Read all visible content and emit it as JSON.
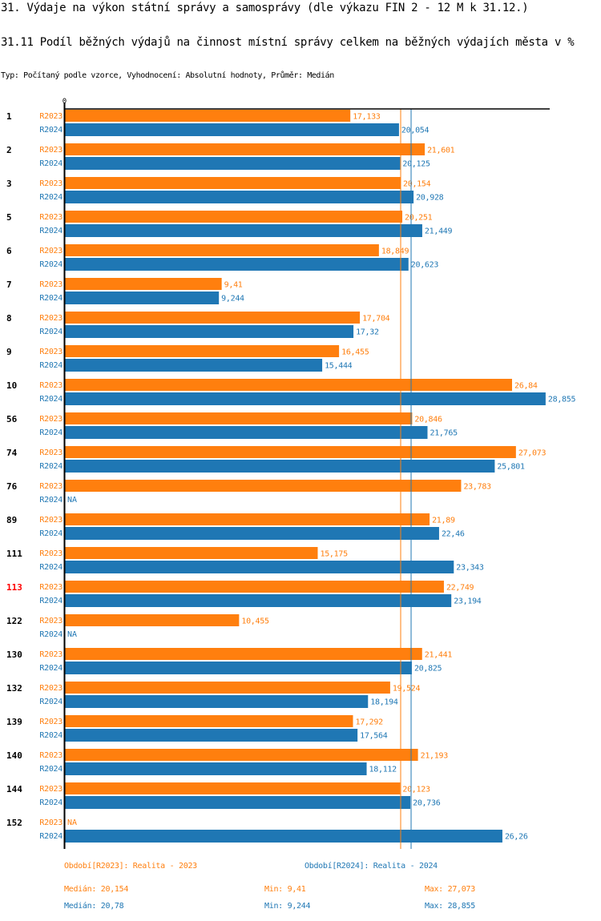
{
  "header": {
    "title": "31. Výdaje na výkon státní správy a samosprávy (dle výkazu FIN 2 - 12 M k 31.12.)",
    "subtitle": "31.11 Podíl běžných výdajů na činnost místní správy celkem na běžných výdajích města v %",
    "meta": "Typ: Počítaný podle vzorce, Vyhodnocení: Absolutní hodnoty, Průměr: Medián"
  },
  "colors": {
    "R2023": "#ff7f0e",
    "R2024": "#1f77b4",
    "highlight": "#ff0000",
    "axis": "#000000"
  },
  "chart_data": {
    "type": "bar",
    "orientation": "horizontal",
    "title": "31.11 Podíl běžných výdajů na činnost místní správy celkem na běžných výdajích města v %",
    "xlabel": "",
    "ylabel": "",
    "x_tick_labels": [
      "0"
    ],
    "xlim": [
      0,
      30
    ],
    "highlight_category": "113",
    "categories": [
      "1",
      "2",
      "3",
      "5",
      "6",
      "7",
      "8",
      "9",
      "10",
      "56",
      "74",
      "76",
      "89",
      "111",
      "113",
      "122",
      "130",
      "132",
      "139",
      "140",
      "144",
      "152"
    ],
    "series": [
      {
        "name": "R2023",
        "legend": "Období[R2023]: Realita - 2023",
        "values": [
          17.133,
          21.601,
          20.154,
          20.251,
          18.849,
          9.41,
          17.704,
          16.455,
          26.84,
          20.846,
          27.073,
          23.783,
          21.89,
          15.175,
          22.749,
          10.455,
          21.441,
          19.524,
          17.292,
          21.193,
          20.123,
          null
        ],
        "labels": [
          "17,133",
          "21,601",
          "20,154",
          "20,251",
          "18,849",
          "9,41",
          "17,704",
          "16,455",
          "26,84",
          "20,846",
          "27,073",
          "23,783",
          "21,89",
          "15,175",
          "22,749",
          "10,455",
          "21,441",
          "19,524",
          "17,292",
          "21,193",
          "20,123",
          "NA"
        ],
        "median": 20.154,
        "stats": {
          "median": "Medián: 20,154",
          "min": "Min: 9,41",
          "max": "Max: 27,073"
        }
      },
      {
        "name": "R2024",
        "legend": "Období[R2024]: Realita - 2024",
        "values": [
          20.054,
          20.125,
          20.928,
          21.449,
          20.623,
          9.244,
          17.32,
          15.444,
          28.855,
          21.765,
          25.801,
          null,
          22.46,
          23.343,
          23.194,
          null,
          20.825,
          18.194,
          17.564,
          18.112,
          20.736,
          26.26
        ],
        "labels": [
          "20,054",
          "20,125",
          "20,928",
          "21,449",
          "20,623",
          "9,244",
          "17,32",
          "15,444",
          "28,855",
          "21,765",
          "25,801",
          "NA",
          "22,46",
          "23,343",
          "23,194",
          "NA",
          "20,825",
          "18,194",
          "17,564",
          "18,112",
          "20,736",
          "26,26"
        ],
        "median": 20.78,
        "stats": {
          "median": "Medián: 20,78",
          "min": "Min: 9,244",
          "max": "Max: 28,855"
        }
      }
    ]
  }
}
